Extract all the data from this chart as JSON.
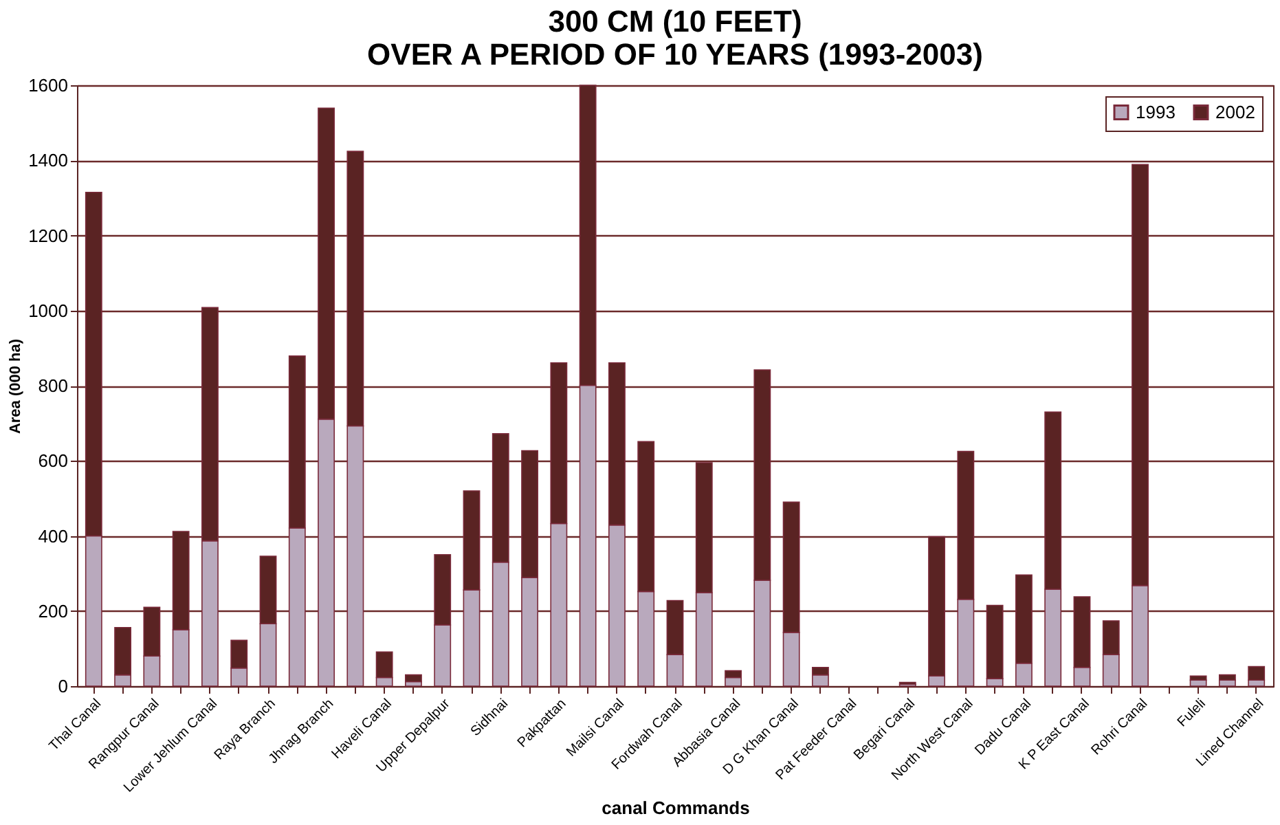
{
  "chart_data": {
    "type": "bar",
    "title": "300 CM (10 FEET)\nOVER A PERIOD OF 10 YEARS (1993-2003)",
    "xlabel": "canal Commands",
    "ylabel": "Area (000 ha)",
    "categories": [
      "Thal Canal",
      null,
      "Rangpur Canal",
      null,
      "Lower Jehlum Canal",
      null,
      "Raya Branch",
      null,
      "Jhnag Branch",
      null,
      "Haveli Canal",
      null,
      "Upper Depalpur",
      null,
      "Sidhnai",
      null,
      "Pakpattan",
      null,
      "Mailsi Canal",
      null,
      "Fordwah Canal",
      null,
      "Abbasia Canal",
      null,
      "D G Khan Canal",
      null,
      "Pat Feeder Canal",
      null,
      "Begari Canal",
      null,
      "North West Canal",
      null,
      "Dadu Canal",
      null,
      "K P East Canal",
      null,
      "Rohri Canal",
      null,
      "Fuleli",
      null,
      "Lined Channel"
    ],
    "stacked": true,
    "series": [
      {
        "name": "1993",
        "color": "#b9a9bd",
        "values": [
          400,
          30,
          80,
          150,
          387,
          48,
          166,
          421,
          711,
          693,
          23,
          12,
          163,
          256,
          330,
          289,
          433,
          801,
          429,
          252,
          84,
          249,
          23,
          282,
          143,
          30,
          null,
          null,
          5,
          27,
          231,
          20,
          61,
          258,
          50,
          84,
          268,
          null,
          16,
          16,
          16
        ]
      },
      {
        "name": "2002",
        "color": "#5a2323",
        "values": [
          915,
          126,
          130,
          262,
          621,
          74,
          180,
          458,
          828,
          731,
          68,
          18,
          187,
          264,
          342,
          338,
          428,
          799,
          432,
          399,
          144,
          346,
          18,
          560,
          347,
          20,
          null,
          null,
          5,
          371,
          394,
          195,
          235,
          472,
          188,
          90,
          1121,
          null,
          11,
          14,
          36
        ]
      }
    ],
    "ylim": [
      0,
      1600
    ],
    "yticks": [
      0,
      200,
      400,
      600,
      800,
      1000,
      1200,
      1400,
      1600
    ],
    "grid": "y",
    "legend": "top right"
  }
}
